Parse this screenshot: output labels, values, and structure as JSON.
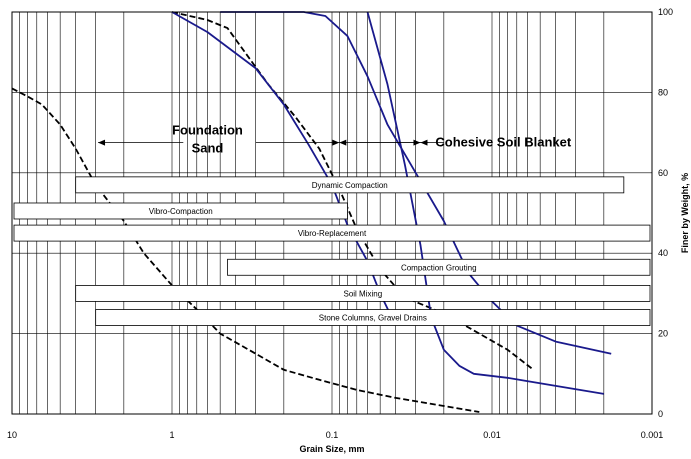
{
  "chart_data": {
    "type": "line",
    "xlabel": "Grain Size, mm",
    "ylabel": "Finer by Weight, %",
    "x_scale": "log",
    "x_reversed": true,
    "xlim": [
      10,
      0.001
    ],
    "ylim": [
      0,
      100
    ],
    "x_ticks": [
      {
        "value": 10,
        "label": "10"
      },
      {
        "value": 1,
        "label": "1"
      },
      {
        "value": 0.1,
        "label": "0.1"
      },
      {
        "value": 0.01,
        "label": "0.01"
      },
      {
        "value": 0.001,
        "label": "0.001"
      }
    ],
    "y_ticks": [
      {
        "value": 0,
        "label": "0"
      },
      {
        "value": 20,
        "label": "20"
      },
      {
        "value": 40,
        "label": "40"
      },
      {
        "value": 60,
        "label": "60"
      },
      {
        "value": 80,
        "label": "80"
      },
      {
        "value": 100,
        "label": "100"
      }
    ],
    "grid": {
      "vertical_log_minor": true,
      "horizontal_major": true
    },
    "series": [
      {
        "style": "dashed",
        "color": "#000000",
        "points": [
          [
            10,
            81
          ],
          [
            8,
            79
          ],
          [
            6.5,
            77
          ],
          [
            5,
            72
          ],
          [
            4,
            66
          ],
          [
            3,
            57
          ],
          [
            2,
            48
          ],
          [
            1.5,
            40
          ],
          [
            1.0,
            32
          ],
          [
            0.7,
            26
          ],
          [
            0.5,
            20
          ],
          [
            0.3,
            15
          ],
          [
            0.2,
            11
          ],
          [
            0.12,
            8.5
          ],
          [
            0.07,
            6
          ],
          [
            0.04,
            4
          ],
          [
            0.02,
            2
          ],
          [
            0.012,
            0.5
          ]
        ]
      },
      {
        "style": "dashed",
        "color": "#000000",
        "points": [
          [
            1.0,
            100
          ],
          [
            0.6,
            98
          ],
          [
            0.45,
            96
          ],
          [
            0.35,
            90
          ],
          [
            0.25,
            82
          ],
          [
            0.17,
            74
          ],
          [
            0.12,
            66
          ],
          [
            0.09,
            56
          ],
          [
            0.07,
            46
          ],
          [
            0.05,
            36
          ],
          [
            0.035,
            29
          ],
          [
            0.02,
            25
          ],
          [
            0.012,
            20
          ],
          [
            0.008,
            16
          ],
          [
            0.0055,
            11
          ]
        ]
      },
      {
        "style": "solid",
        "color": "#1a1a8c",
        "points": [
          [
            1.0,
            100
          ],
          [
            0.6,
            95
          ],
          [
            0.3,
            86
          ],
          [
            0.2,
            77
          ],
          [
            0.14,
            67
          ],
          [
            0.1,
            57
          ],
          [
            0.08,
            47
          ],
          [
            0.06,
            38
          ],
          [
            0.05,
            30
          ],
          [
            0.04,
            22
          ]
        ]
      },
      {
        "style": "solid",
        "color": "#1a1a8c",
        "points": [
          [
            0.5,
            100
          ],
          [
            0.15,
            100
          ],
          [
            0.11,
            99
          ],
          [
            0.08,
            94
          ],
          [
            0.06,
            84
          ],
          [
            0.045,
            72
          ],
          [
            0.03,
            60
          ],
          [
            0.02,
            48
          ],
          [
            0.014,
            35
          ],
          [
            0.01,
            28
          ],
          [
            0.007,
            22
          ],
          [
            0.004,
            18
          ],
          [
            0.0018,
            15
          ]
        ]
      },
      {
        "style": "solid",
        "color": "#1a1a8c",
        "points": [
          [
            0.06,
            100
          ],
          [
            0.045,
            82
          ],
          [
            0.035,
            62
          ],
          [
            0.028,
            42
          ],
          [
            0.024,
            24
          ],
          [
            0.02,
            16
          ],
          [
            0.016,
            12
          ],
          [
            0.013,
            10
          ],
          [
            0.008,
            9
          ],
          [
            0.004,
            7
          ],
          [
            0.002,
            5
          ]
        ]
      }
    ],
    "annotations": [
      {
        "text": "Foundation",
        "x": 0.6,
        "y": 70.5
      },
      {
        "text": "Sand",
        "x": 0.6,
        "y": 66
      },
      {
        "text": "Cohesive Soil Blanket",
        "x": 0.0085,
        "y": 67.5
      }
    ],
    "ranges": [
      {
        "label": "Dynamic Compaction",
        "x_from": 4.0,
        "x_to": 0.0015,
        "y": 57
      },
      {
        "label": "Vibro-Compaction",
        "x_from": 10,
        "x_to": 0.08,
        "y": 50.5
      },
      {
        "label": "Vibro-Replacement",
        "x_from": 10,
        "x_to": 0.001,
        "y": 45
      },
      {
        "label": "Compaction Grouting",
        "x_from": 0.45,
        "x_to": 0.001,
        "y": 36.5
      },
      {
        "label": "Soil Mixing",
        "x_from": 4.0,
        "x_to": 0.001,
        "y": 30
      },
      {
        "label": "Stone Columns, Gravel Drains",
        "x_from": 3.0,
        "x_to": 0.001,
        "y": 24
      }
    ]
  }
}
